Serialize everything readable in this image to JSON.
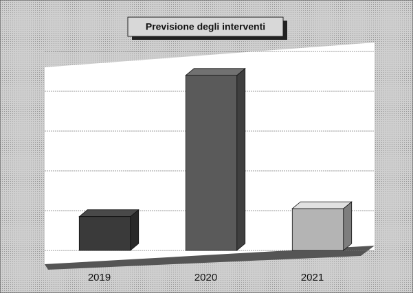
{
  "chart_data": {
    "type": "bar3d",
    "title": "Previsione degli interventi",
    "categories": [
      "2019",
      "2020",
      "2021"
    ],
    "values": [
      0.85,
      4.4,
      1.05
    ],
    "colors": [
      "#3a3a3a",
      "#5a5a5a",
      "#b4b4b4"
    ],
    "ylim": [
      0,
      5
    ],
    "yticks": [
      0,
      1,
      2,
      3,
      4,
      5
    ],
    "grid": true
  }
}
